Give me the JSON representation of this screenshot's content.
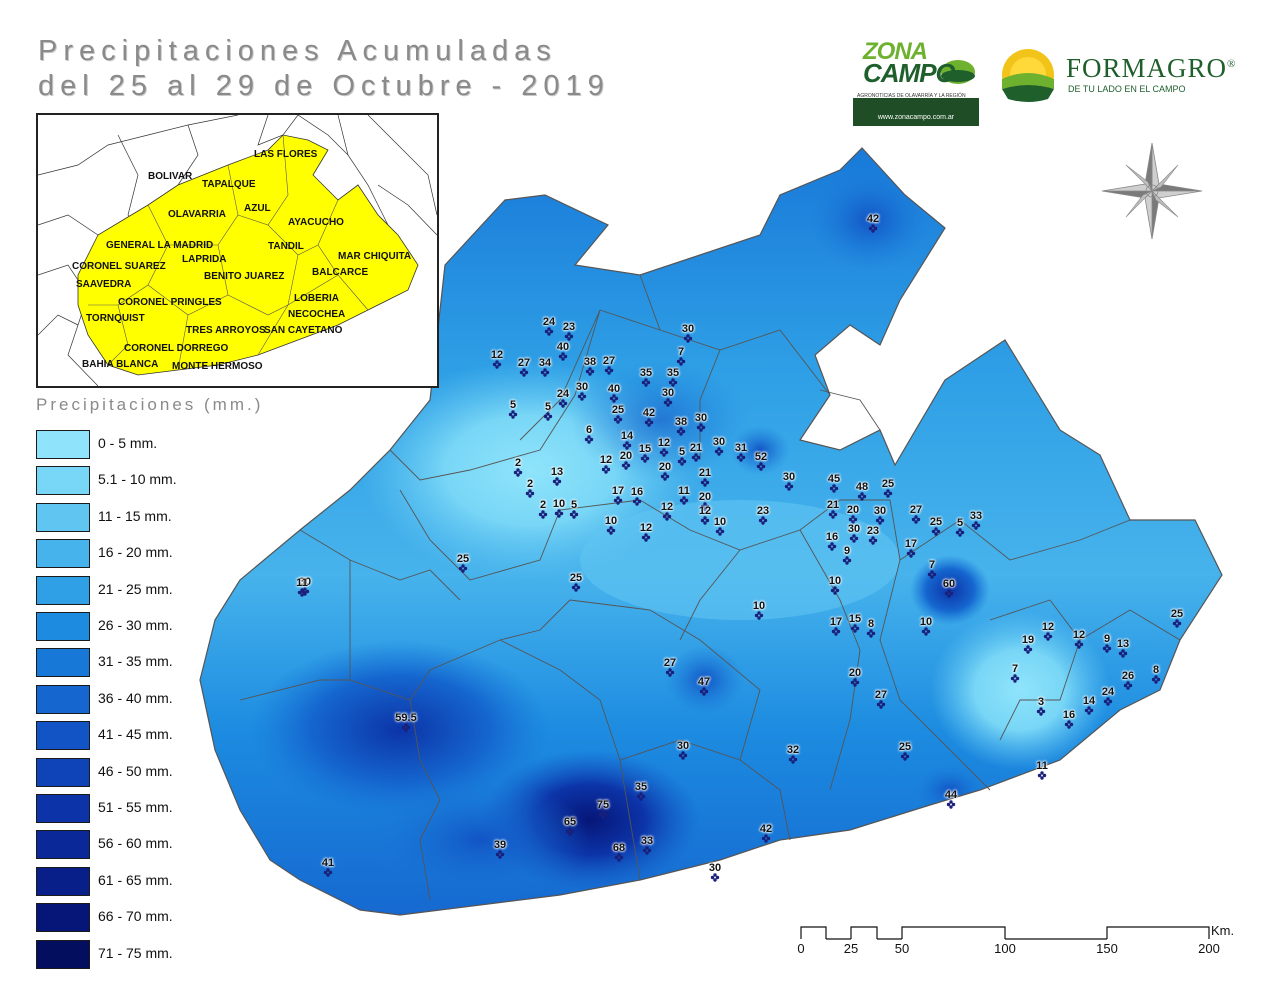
{
  "title_line1": "Precipitaciones Acumuladas",
  "title_line2": "del 25 al 29 de Octubre - 2019",
  "logos": {
    "zonacampo_top": "ZONA",
    "zonacampo_bottom": "CAMPO",
    "zonacampo_tagline": "AGRONOTICIAS DE OLAVARRÍA Y LA REGIÓN",
    "zonacampo_url": "www.zonacampo.com.ar",
    "formagro_name": "FORMAGRO",
    "formagro_registered": "®",
    "formagro_tagline": "DE TU LADO EN EL CAMPO"
  },
  "inset_map": {
    "highlight_color": "#ffff00",
    "labels": [
      {
        "text": "LAS FLORES"
      },
      {
        "text": "BOLIVAR"
      },
      {
        "text": "TAPALQUE"
      },
      {
        "text": "AZUL"
      },
      {
        "text": "OLAVARRIA"
      },
      {
        "text": "AYACUCHO"
      },
      {
        "text": "GENERAL LA MADRID"
      },
      {
        "text": "TANDIL"
      },
      {
        "text": "LAPRIDA"
      },
      {
        "text": "MAR CHIQUITA"
      },
      {
        "text": "CORONEL SUAREZ"
      },
      {
        "text": "BENITO JUAREZ"
      },
      {
        "text": "BALCARCE"
      },
      {
        "text": "SAAVEDRA"
      },
      {
        "text": "CORONEL PRINGLES"
      },
      {
        "text": "LOBERIA"
      },
      {
        "text": "NECOCHEA"
      },
      {
        "text": "TORNQUIST"
      },
      {
        "text": "TRES ARROYOS"
      },
      {
        "text": "SAN CAYETANO"
      },
      {
        "text": "CORONEL DORREGO"
      },
      {
        "text": "BAHIA BLANCA"
      },
      {
        "text": "MONTE HERMOSO"
      }
    ]
  },
  "legend": {
    "title": "Precipitaciones (mm.)",
    "items": [
      {
        "label": "0 - 5 mm.",
        "color": "#8fe4fb"
      },
      {
        "label": "5.1 - 10 mm.",
        "color": "#78d6f6"
      },
      {
        "label": "11 - 15 mm.",
        "color": "#60c5f1"
      },
      {
        "label": "16 - 20 mm.",
        "color": "#47b3ec"
      },
      {
        "label": "21 - 25 mm.",
        "color": "#2fa0e6"
      },
      {
        "label": "26 - 30 mm.",
        "color": "#1c8be0"
      },
      {
        "label": "31 - 35 mm.",
        "color": "#1878d8"
      },
      {
        "label": "36 - 40 mm.",
        "color": "#1566cf"
      },
      {
        "label": "41 - 45 mm.",
        "color": "#1254c5"
      },
      {
        "label": "46 - 50 mm.",
        "color": "#0f43b8"
      },
      {
        "label": "51 - 55 mm.",
        "color": "#0c34a8"
      },
      {
        "label": "56 - 60 mm.",
        "color": "#0a2898"
      },
      {
        "label": "61 - 65 mm.",
        "color": "#081e88"
      },
      {
        "label": "66 - 70 mm.",
        "color": "#061678"
      },
      {
        "label": "71 - 75 mm.",
        "color": "#040e5e"
      }
    ]
  },
  "stations": [
    "42",
    "24",
    "23",
    "30",
    "12",
    "27",
    "34",
    "40",
    "38",
    "27",
    "7",
    "35",
    "35",
    "30",
    "40",
    "24",
    "30",
    "5",
    "5",
    "25",
    "42",
    "38",
    "30",
    "6",
    "14",
    "30",
    "21",
    "31",
    "52",
    "12",
    "20",
    "15",
    "12",
    "5",
    "2",
    "13",
    "2",
    "2",
    "10",
    "5",
    "20",
    "21",
    "17",
    "16",
    "11",
    "20",
    "12",
    "12",
    "10",
    "12",
    "10",
    "23",
    "30",
    "45",
    "48",
    "25",
    "30",
    "21",
    "20",
    "30",
    "27",
    "25",
    "5",
    "33",
    "16",
    "23",
    "17",
    "9",
    "7",
    "10",
    "60",
    "30",
    "25",
    "11",
    "25",
    "10",
    "17",
    "15",
    "8",
    "10",
    "12",
    "19",
    "12",
    "9",
    "13",
    "25",
    "27",
    "47",
    "20",
    "7",
    "26",
    "8",
    "27",
    "3",
    "24",
    "14",
    "16",
    "59.5",
    "30",
    "32",
    "25",
    "11",
    "35",
    "75",
    "65",
    "44",
    "68",
    "33",
    "42",
    "39",
    "41",
    "30"
  ],
  "scale_bar": {
    "unit": "Km.",
    "ticks": [
      "0",
      "25",
      "50",
      "100",
      "150",
      "200"
    ]
  }
}
